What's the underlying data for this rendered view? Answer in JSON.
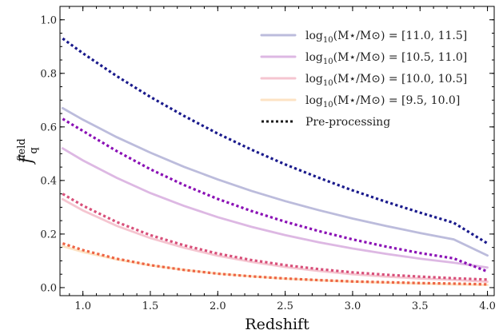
{
  "chart_data": {
    "type": "line",
    "xlabel": "Redshift",
    "ylabel": {
      "main": "f",
      "superscript": "field",
      "subscript": "q"
    },
    "xlim": [
      0.83,
      4.05
    ],
    "ylim": [
      -0.03,
      1.05
    ],
    "xticks": [
      1.0,
      1.5,
      2.0,
      2.5,
      3.0,
      3.5,
      4.0
    ],
    "xtick_labels": [
      "1.0",
      "1.5",
      "2.0",
      "2.5",
      "3.0",
      "3.5",
      "4.0"
    ],
    "yticks": [
      0.0,
      0.2,
      0.4,
      0.6,
      0.8,
      1.0
    ],
    "ytick_labels": [
      "0.0",
      "0.2",
      "0.4",
      "0.6",
      "0.8",
      "1.0"
    ],
    "grid": false,
    "legend_position": "top-right",
    "x": [
      0.85,
      1.0,
      1.25,
      1.5,
      1.75,
      2.0,
      2.25,
      2.5,
      2.75,
      3.0,
      3.25,
      3.5,
      3.75,
      4.0
    ],
    "series": [
      {
        "legend_pre": "log",
        "legend_sub": "10",
        "legend_post": "(M⋆/M⊙) = [11.0, 11.5]",
        "color": "#bcbcdc",
        "style": "solid",
        "values": [
          0.67,
          0.627,
          0.562,
          0.504,
          0.451,
          0.404,
          0.361,
          0.323,
          0.289,
          0.258,
          0.23,
          0.204,
          0.18,
          0.12
        ]
      },
      {
        "legend_pre": "log",
        "legend_sub": "10",
        "legend_post": "(M⋆/M⊙) = [10.5, 11.0]",
        "color": "#ddb8e3",
        "style": "solid",
        "values": [
          0.52,
          0.475,
          0.41,
          0.353,
          0.305,
          0.263,
          0.227,
          0.196,
          0.169,
          0.146,
          0.126,
          0.108,
          0.093,
          0.075
        ]
      },
      {
        "legend_pre": "log",
        "legend_sub": "10",
        "legend_post": "(M⋆/M⊙) = [10.0, 10.5]",
        "color": "#f5c5d0",
        "style": "solid",
        "values": [
          0.33,
          0.288,
          0.231,
          0.185,
          0.149,
          0.119,
          0.096,
          0.077,
          0.062,
          0.05,
          0.041,
          0.034,
          0.029,
          0.022
        ]
      },
      {
        "legend_pre": "log",
        "legend_sub": "10",
        "legend_post": "(M⋆/M⊙) = [9.5, 10.0]",
        "color": "#fde3c4",
        "style": "solid",
        "values": [
          0.155,
          0.133,
          0.105,
          0.083,
          0.066,
          0.052,
          0.042,
          0.033,
          0.027,
          0.022,
          0.018,
          0.015,
          0.012,
          0.01
        ]
      },
      {
        "color": "#1a1a8c",
        "style": "dotted",
        "values": [
          0.93,
          0.875,
          0.79,
          0.712,
          0.641,
          0.575,
          0.515,
          0.46,
          0.41,
          0.363,
          0.32,
          0.28,
          0.242,
          0.165
        ]
      },
      {
        "color": "#8a10b5",
        "style": "dotted",
        "values": [
          0.63,
          0.585,
          0.51,
          0.442,
          0.383,
          0.331,
          0.286,
          0.246,
          0.211,
          0.18,
          0.153,
          0.129,
          0.109,
          0.06
        ]
      },
      {
        "color": "#d8507a",
        "style": "dotted",
        "values": [
          0.35,
          0.306,
          0.245,
          0.196,
          0.158,
          0.127,
          0.103,
          0.084,
          0.069,
          0.057,
          0.048,
          0.041,
          0.035,
          0.03
        ]
      },
      {
        "color": "#ee6444",
        "style": "dotted",
        "values": [
          0.165,
          0.14,
          0.108,
          0.084,
          0.066,
          0.052,
          0.042,
          0.034,
          0.028,
          0.023,
          0.02,
          0.017,
          0.015,
          0.012
        ]
      }
    ],
    "legend_extra": {
      "label": "Pre-processing",
      "color": "#1a1a1a",
      "style": "dotted"
    }
  }
}
